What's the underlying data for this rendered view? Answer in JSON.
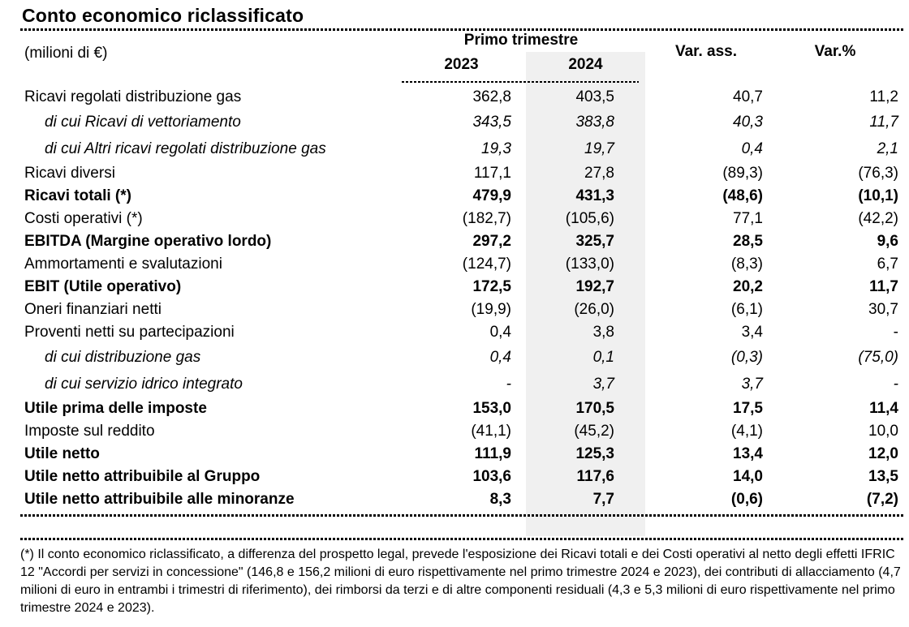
{
  "title": "Conto economico riclassificato",
  "unit_label": "(milioni di €)",
  "header": {
    "group_label": "Primo trimestre",
    "col_2023": "2023",
    "col_2024": "2024",
    "col_var_abs": "Var. ass.",
    "col_var_pct": "Var.%"
  },
  "table": {
    "rows": [
      {
        "label": "Ricavi regolati distribuzione gas",
        "y2023": "362,8",
        "y2024": "403,5",
        "var_abs": "40,7",
        "var_pct": "11,2",
        "style": "normal"
      },
      {
        "label": "di cui Ricavi di vettoriamento",
        "y2023": "343,5",
        "y2024": "383,8",
        "var_abs": "40,3",
        "var_pct": "11,7",
        "style": "subitalic"
      },
      {
        "label": "di cui Altri ricavi regolati distribuzione gas",
        "y2023": "19,3",
        "y2024": "19,7",
        "var_abs": "0,4",
        "var_pct": "2,1",
        "style": "subitalic"
      },
      {
        "label": "Ricavi diversi",
        "y2023": "117,1",
        "y2024": "27,8",
        "var_abs": "(89,3)",
        "var_pct": "(76,3)",
        "style": "normal"
      },
      {
        "label": "Ricavi totali (*)",
        "y2023": "479,9",
        "y2024": "431,3",
        "var_abs": "(48,6)",
        "var_pct": "(10,1)",
        "style": "bold"
      },
      {
        "label": "Costi operativi (*)",
        "y2023": "(182,7)",
        "y2024": "(105,6)",
        "var_abs": "77,1",
        "var_pct": "(42,2)",
        "style": "normal"
      },
      {
        "label": "EBITDA (Margine operativo lordo)",
        "y2023": "297,2",
        "y2024": "325,7",
        "var_abs": "28,5",
        "var_pct": "9,6",
        "style": "bold"
      },
      {
        "label": "Ammortamenti e svalutazioni",
        "y2023": "(124,7)",
        "y2024": "(133,0)",
        "var_abs": "(8,3)",
        "var_pct": "6,7",
        "style": "normal"
      },
      {
        "label": "EBIT (Utile operativo)",
        "y2023": "172,5",
        "y2024": "192,7",
        "var_abs": "20,2",
        "var_pct": "11,7",
        "style": "bold"
      },
      {
        "label": "Oneri finanziari netti",
        "y2023": "(19,9)",
        "y2024": "(26,0)",
        "var_abs": "(6,1)",
        "var_pct": "30,7",
        "style": "normal"
      },
      {
        "label": "Proventi netti su partecipazioni",
        "y2023": "0,4",
        "y2024": "3,8",
        "var_abs": "3,4",
        "var_pct": "-",
        "style": "normal"
      },
      {
        "label": "di cui distribuzione gas",
        "y2023": "0,4",
        "y2024": "0,1",
        "var_abs": "(0,3)",
        "var_pct": "(75,0)",
        "style": "subitalic"
      },
      {
        "label": "di cui servizio idrico integrato",
        "y2023": "-",
        "y2024": "3,7",
        "var_abs": "3,7",
        "var_pct": "-",
        "style": "subitalic"
      },
      {
        "label": "Utile prima delle imposte",
        "y2023": "153,0",
        "y2024": "170,5",
        "var_abs": "17,5",
        "var_pct": "11,4",
        "style": "bold"
      },
      {
        "label": "Imposte sul reddito",
        "y2023": "(41,1)",
        "y2024": "(45,2)",
        "var_abs": "(4,1)",
        "var_pct": "10,0",
        "style": "normal"
      },
      {
        "label": "Utile netto",
        "y2023": "111,9",
        "y2024": "125,3",
        "var_abs": "13,4",
        "var_pct": "12,0",
        "style": "bold"
      },
      {
        "label": "Utile netto attribuibile al Gruppo",
        "y2023": "103,6",
        "y2024": "117,6",
        "var_abs": "14,0",
        "var_pct": "13,5",
        "style": "bold"
      },
      {
        "label": "Utile netto attribuibile alle minoranze",
        "y2023": "8,3",
        "y2024": "7,7",
        "var_abs": "(0,6)",
        "var_pct": "(7,2)",
        "style": "bold"
      }
    ]
  },
  "footnote": "(*) Il conto economico riclassificato, a differenza del prospetto legal, prevede l'esposizione dei Ricavi totali e dei Costi operativi al netto degli effetti IFRIC 12 \"Accordi per servizi in concessione\" (146,8 e 156,2 milioni di euro rispettivamente nel primo trimestre 2024 e 2023), dei contributi di allacciamento (4,7 milioni di euro in entrambi i trimestri di riferimento), dei rimborsi da terzi e di altre componenti residuali (4,3 e 5,3 milioni di euro rispettivamente nel primo trimestre 2024 e 2023).",
  "colors": {
    "highlight_column": "#f0f0f0",
    "text": "#000000"
  }
}
